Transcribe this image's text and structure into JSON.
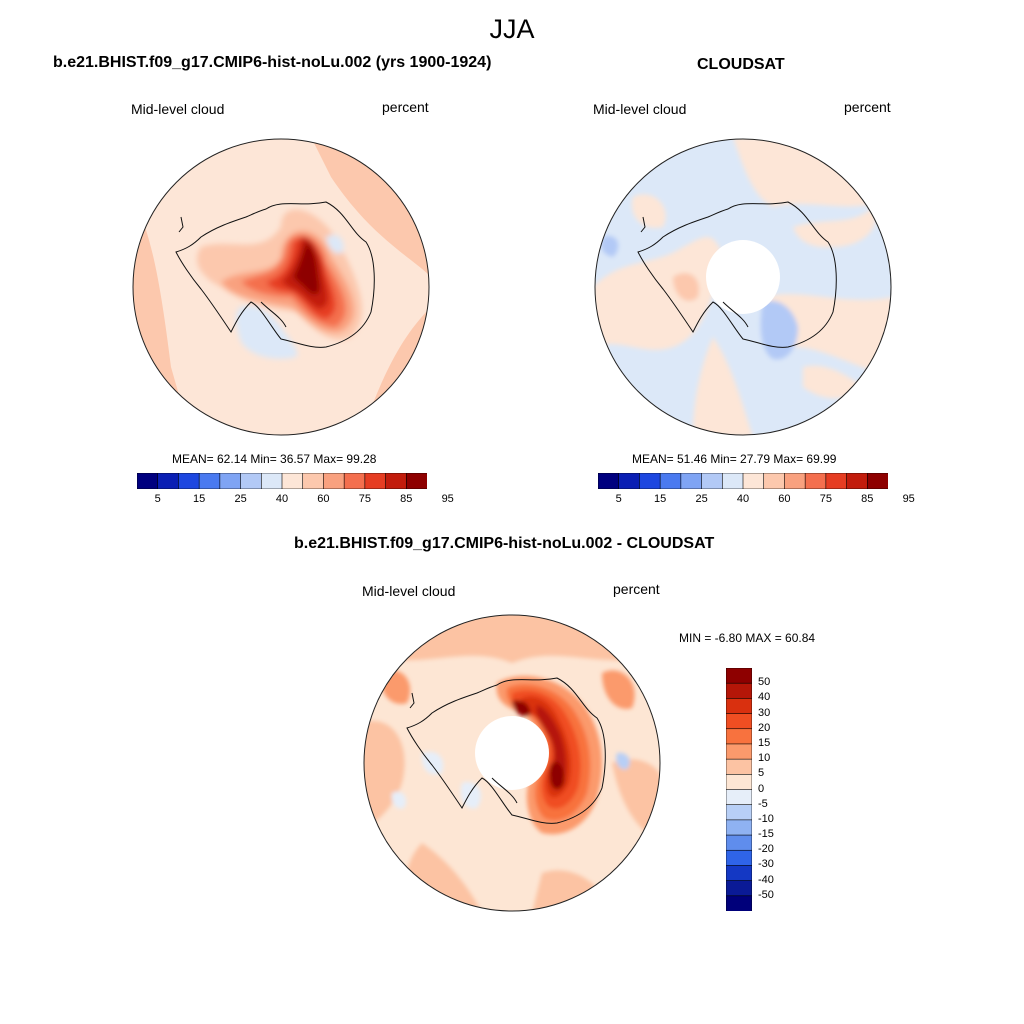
{
  "main_title": "JJA",
  "panels": [
    {
      "title": "b.e21.BHIST.f09_g17.CMIP6-hist-noLu.002 (yrs 1900-1924)",
      "left_label": "Mid-level cloud",
      "right_label": "percent",
      "stats": "MEAN=  62.14  Min=  36.57  Max=  99.28",
      "mean": 62.14,
      "min": 36.57,
      "max": 99.28
    },
    {
      "title": "CLOUDSAT",
      "left_label": "Mid-level cloud",
      "right_label": "percent",
      "stats": "MEAN=  51.46  Min=  27.79  Max=  69.99",
      "mean": 51.46,
      "min": 27.79,
      "max": 69.99
    },
    {
      "title": "b.e21.BHIST.f09_g17.CMIP6-hist-noLu.002 - CLOUDSAT",
      "left_label": "Mid-level cloud",
      "right_label": "percent",
      "stats": "MIN =  -6.80 MAX =  60.84",
      "min": -6.8,
      "max": 60.84
    }
  ],
  "colorbar_abs": {
    "labels": [
      "5",
      "15",
      "25",
      "40",
      "60",
      "75",
      "85",
      "95"
    ],
    "colors": [
      "#00007f",
      "#0a1fb4",
      "#1d47e0",
      "#4a7af0",
      "#7fa4f4",
      "#b2c9f6",
      "#dce8f8",
      "#fde6d7",
      "#fcc8ad",
      "#f9a17f",
      "#f46f4e",
      "#e63d22",
      "#c21c0c",
      "#8e0000"
    ]
  },
  "colorbar_diff": {
    "labels": [
      "50",
      "40",
      "30",
      "20",
      "15",
      "10",
      "5",
      "0",
      "-5",
      "-10",
      "-15",
      "-20",
      "-30",
      "-40",
      "-50"
    ],
    "colors": [
      "#8e0000",
      "#b51608",
      "#d9300f",
      "#f04e22",
      "#f8723e",
      "#fb9a6c",
      "#fcc3a3",
      "#fde6d4",
      "#e6eef9",
      "#b8cff6",
      "#8fb2f2",
      "#5f8ded",
      "#2f64e8",
      "#1438c4",
      "#0a1a96",
      "#00007a"
    ]
  },
  "chart_data": [
    {
      "type": "heatmap",
      "title": "b.e21.BHIST.f09_g17.CMIP6-hist-noLu.002 (yrs 1900-1924)",
      "variable": "Mid-level cloud",
      "units": "percent",
      "season": "JJA",
      "mean": 62.14,
      "min": 36.57,
      "max": 99.28
    },
    {
      "type": "heatmap",
      "title": "CLOUDSAT",
      "variable": "Mid-level cloud",
      "units": "percent",
      "season": "JJA",
      "mean": 51.46,
      "min": 27.79,
      "max": 69.99
    },
    {
      "type": "heatmap",
      "title": "b.e21.BHIST.f09_g17.CMIP6-hist-noLu.002 - CLOUDSAT",
      "variable": "Mid-level cloud",
      "units": "percent",
      "season": "JJA",
      "min": -6.8,
      "max": 60.84
    }
  ]
}
